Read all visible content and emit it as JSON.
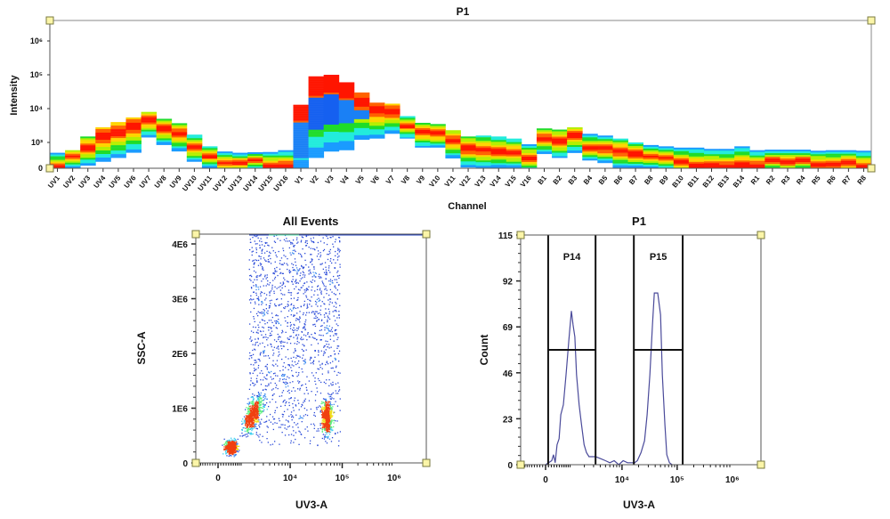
{
  "chart_data": [
    {
      "type": "heatmap",
      "title": "P1",
      "xlabel": "Channel",
      "ylabel": "Intensity",
      "yscale": "biexponential",
      "ytick_labels": [
        "0",
        "10³",
        "10⁴",
        "10⁵",
        "10⁶"
      ],
      "ytick_values": [
        0,
        1000,
        10000,
        100000,
        1000000
      ],
      "channels": [
        {
          "name": "UV1",
          "top": 600,
          "bottom": 0,
          "peak": 50
        },
        {
          "name": "UV2",
          "top": 700,
          "bottom": 0,
          "peak": 450
        },
        {
          "name": "UV3",
          "top": 1500,
          "bottom": 100,
          "peak": 800
        },
        {
          "name": "UV4",
          "top": 2800,
          "bottom": 250,
          "peak": 1500
        },
        {
          "name": "UV5",
          "top": 4000,
          "bottom": 400,
          "peak": 2000
        },
        {
          "name": "UV6",
          "top": 5500,
          "bottom": 600,
          "peak": 3000
        },
        {
          "name": "UV7",
          "top": 8000,
          "bottom": 1400,
          "peak": 4500
        },
        {
          "name": "UV8",
          "top": 5000,
          "bottom": 900,
          "peak": 2500
        },
        {
          "name": "UV9",
          "top": 3700,
          "bottom": 650,
          "peak": 1800
        },
        {
          "name": "UV10",
          "top": 1700,
          "bottom": 250,
          "peak": 800
        },
        {
          "name": "UV11",
          "top": 850,
          "bottom": 0,
          "peak": 450
        },
        {
          "name": "UV12",
          "top": 650,
          "bottom": 0,
          "peak": 200
        },
        {
          "name": "UV13",
          "top": 600,
          "bottom": 0,
          "peak": 200
        },
        {
          "name": "UV14",
          "top": 620,
          "bottom": 0,
          "peak": 300
        },
        {
          "name": "UV15",
          "top": 630,
          "bottom": 0,
          "peak": 100
        },
        {
          "name": "UV16",
          "top": 700,
          "bottom": 0,
          "peak": 100
        },
        {
          "name": "V1",
          "top": 13000,
          "bottom": 0,
          "peak": 7500,
          "blue_band": [
            400,
            4000
          ]
        },
        {
          "name": "V2",
          "top": 90000,
          "bottom": 400,
          "peak": 45000,
          "blue_band": [
            2500,
            22000
          ]
        },
        {
          "name": "V3",
          "top": 100000,
          "bottom": 650,
          "peak": 55000,
          "blue_band": [
            3500,
            27000
          ]
        },
        {
          "name": "V4",
          "top": 60000,
          "bottom": 700,
          "peak": 35000,
          "blue_band": [
            3500,
            17000
          ]
        },
        {
          "name": "V5",
          "top": 30000,
          "bottom": 1200,
          "peak": 15000,
          "blue_band": [
            5000,
            9000
          ]
        },
        {
          "name": "V6",
          "top": 15000,
          "bottom": 1300,
          "peak": 9000
        },
        {
          "name": "V7",
          "top": 14000,
          "bottom": 1800,
          "peak": 8000
        },
        {
          "name": "V8",
          "top": 6000,
          "bottom": 1300,
          "peak": 3000
        },
        {
          "name": "V9",
          "top": 3800,
          "bottom": 800,
          "peak": 2000
        },
        {
          "name": "V10",
          "top": 3500,
          "bottom": 800,
          "peak": 1800
        },
        {
          "name": "V11",
          "top": 2300,
          "bottom": 380,
          "peak": 1130
        },
        {
          "name": "V12",
          "top": 1500,
          "bottom": 30,
          "peak": 760
        },
        {
          "name": "V13",
          "top": 1600,
          "bottom": 0,
          "peak": 700
        },
        {
          "name": "V14",
          "top": 1500,
          "bottom": 0,
          "peak": 650
        },
        {
          "name": "V15",
          "top": 1300,
          "bottom": 0,
          "peak": 600
        },
        {
          "name": "V16",
          "top": 930,
          "bottom": 0,
          "peak": 400
        },
        {
          "name": "B1",
          "top": 2600,
          "bottom": 550,
          "peak": 1300
        },
        {
          "name": "B2",
          "top": 2400,
          "bottom": 400,
          "peak": 1100
        },
        {
          "name": "B3",
          "top": 2800,
          "bottom": 590,
          "peak": 1600
        },
        {
          "name": "B4",
          "top": 1800,
          "bottom": 300,
          "peak": 800
        },
        {
          "name": "B5",
          "top": 1600,
          "bottom": 200,
          "peak": 750
        },
        {
          "name": "B6",
          "top": 1300,
          "bottom": 0,
          "peak": 650
        },
        {
          "name": "B7",
          "top": 1000,
          "bottom": 0,
          "peak": 550
        },
        {
          "name": "B8",
          "top": 900,
          "bottom": 0,
          "peak": 450
        },
        {
          "name": "B9",
          "top": 850,
          "bottom": 0,
          "peak": 400
        },
        {
          "name": "B10",
          "top": 800,
          "bottom": 0,
          "peak": 250
        },
        {
          "name": "B11",
          "top": 800,
          "bottom": 0,
          "peak": 50
        },
        {
          "name": "B12",
          "top": 750,
          "bottom": 0,
          "peak": 100
        },
        {
          "name": "B13",
          "top": 750,
          "bottom": 0,
          "peak": 50
        },
        {
          "name": "B14",
          "top": 850,
          "bottom": 0,
          "peak": 100
        },
        {
          "name": "R1",
          "top": 700,
          "bottom": 0,
          "peak": 100
        },
        {
          "name": "R2",
          "top": 720,
          "bottom": 0,
          "peak": 300
        },
        {
          "name": "R3",
          "top": 720,
          "bottom": 0,
          "peak": 250
        },
        {
          "name": "R4",
          "top": 720,
          "bottom": 0,
          "peak": 300
        },
        {
          "name": "R5",
          "top": 680,
          "bottom": 0,
          "peak": 150
        },
        {
          "name": "R6",
          "top": 700,
          "bottom": 0,
          "peak": 150
        },
        {
          "name": "R7",
          "top": 700,
          "bottom": 0,
          "peak": 200
        },
        {
          "name": "R8",
          "top": 680,
          "bottom": 0,
          "peak": 50
        }
      ],
      "colors": {
        "peak": "#ff1a00",
        "mid": "#ffd000",
        "low": "#22dd22",
        "edge": "#1a9bff",
        "sparse": "#1560f0"
      }
    },
    {
      "type": "scatter",
      "title": "All Events",
      "xlabel": "UV3-A",
      "ylabel": "SSC-A",
      "xscale": "biexponential",
      "xlim": [
        -1000,
        4100000
      ],
      "ylim": [
        0,
        4190000
      ],
      "xtick_labels": [
        "0",
        "10⁴",
        "10⁵",
        "10⁶"
      ],
      "xtick_values": [
        0,
        10000,
        100000,
        1000000
      ],
      "ytick_labels": [
        "0",
        "1E6",
        "2E6",
        "3E6",
        "4E6"
      ],
      "ytick_values": [
        0,
        1000000,
        2000000,
        3000000,
        4000000
      ],
      "populations": [
        {
          "x_center": 500,
          "x_range": [
            150,
            1200
          ],
          "y_center": 300000,
          "y_range": [
            50000,
            700000
          ],
          "density": "high"
        },
        {
          "x_center": 1800,
          "x_range": [
            600,
            3500
          ],
          "y_center": 900000,
          "y_range": [
            300000,
            1600000
          ],
          "density": "medium"
        },
        {
          "x_center": 50000,
          "x_range": [
            30000,
            85000
          ],
          "y_center": 850000,
          "y_range": [
            400000,
            1600000
          ],
          "density": "medium"
        },
        {
          "x_center": 10000,
          "x_range": [
            1500,
            90000
          ],
          "y_center": 2300000,
          "y_range": [
            300000,
            4190000
          ],
          "density": "low"
        }
      ],
      "colors": {
        "low": "#1f3fd0",
        "mid": "#35c8e8",
        "high": "#e01010"
      }
    },
    {
      "type": "line",
      "title": "P1",
      "xlabel": "UV3-A",
      "ylabel": "Count",
      "xscale": "biexponential",
      "xlim": [
        -1000,
        4000000
      ],
      "ylim": [
        0,
        115
      ],
      "xtick_labels": [
        "0",
        "10⁴",
        "10⁵",
        "10⁶"
      ],
      "xtick_values": [
        0,
        10000,
        100000,
        1000000
      ],
      "ytick_labels": [
        "0",
        "23",
        "46",
        "69",
        "92",
        "115"
      ],
      "ytick_values": [
        0,
        23,
        46,
        69,
        92,
        115
      ],
      "x": [
        0,
        215,
        277,
        341,
        412,
        490,
        560,
        670,
        795,
        930,
        1070,
        1170,
        1280,
        1390,
        1570,
        1760,
        1980,
        2200,
        2460,
        3270,
        4100,
        4980,
        6000,
        7200,
        8700,
        10500,
        12600,
        15200,
        17000,
        19000,
        22100,
        25600,
        28600,
        32000,
        35700,
        38600,
        44500,
        50000,
        53800,
        60000,
        65000,
        72500,
        81000
      ],
      "y": [
        0,
        2,
        5,
        1,
        10,
        13,
        25,
        30,
        45,
        62,
        77,
        70,
        64,
        45,
        30,
        20,
        10,
        6,
        4,
        4,
        3,
        2,
        1,
        2,
        0,
        2,
        1,
        1,
        1,
        2,
        6,
        12,
        25,
        45,
        70,
        86,
        86,
        75,
        45,
        20,
        5,
        1,
        0
      ],
      "line_color": "#4a4a9a",
      "gates": [
        {
          "name": "P14",
          "x_range": [
            90,
            3270
          ],
          "count_level": 57.5
        },
        {
          "name": "P15",
          "x_range": [
            16400,
            126000
          ],
          "count_level": 57.5
        }
      ]
    }
  ]
}
